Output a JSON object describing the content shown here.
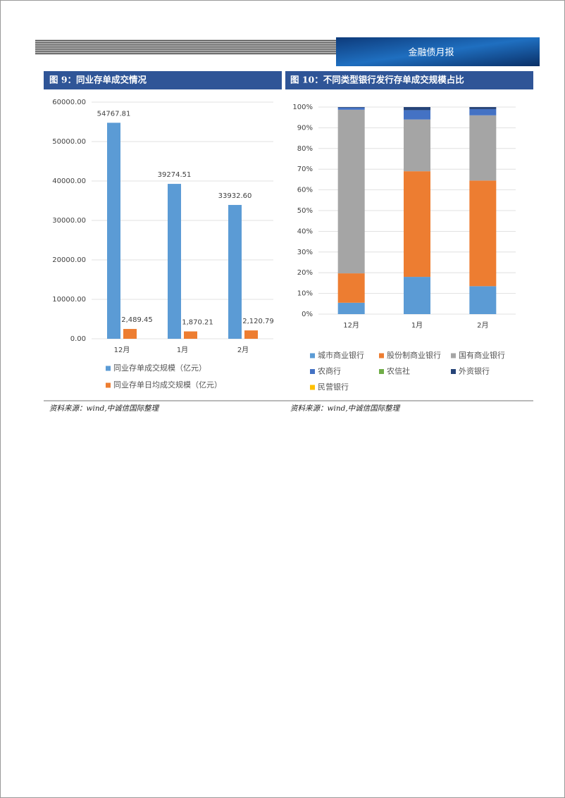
{
  "header": {
    "title": "金融债月报"
  },
  "chart_data": [
    {
      "type": "bar",
      "title": "图 9：同业存单成交情况",
      "categories": [
        "12月",
        "1月",
        "2月"
      ],
      "series": [
        {
          "name": "同业存单成交规模（亿元）",
          "color": "#5b9bd5",
          "values": [
            54767.81,
            39274.51,
            33932.6
          ],
          "value_labels": [
            "54767.81",
            "39274.51",
            "33932.60"
          ]
        },
        {
          "name": "同业存单日均成交规模（亿元）",
          "color": "#ed7d31",
          "values": [
            2489.45,
            1870.21,
            2120.79
          ],
          "value_labels": [
            "2,489.45",
            "1,870.21",
            "2,120.79"
          ]
        }
      ],
      "ylim": [
        0,
        60000
      ],
      "yticks": [
        {
          "value": 0,
          "label": "0.00"
        },
        {
          "value": 10000,
          "label": "10000.00"
        },
        {
          "value": 20000,
          "label": "20000.00"
        },
        {
          "value": 30000,
          "label": "30000.00"
        },
        {
          "value": 40000,
          "label": "40000.00"
        },
        {
          "value": 50000,
          "label": "50000.00"
        },
        {
          "value": 60000,
          "label": "60000.00"
        }
      ],
      "grid": true,
      "legend": "bottom"
    },
    {
      "type": "stacked_bar",
      "title": "图 10：不同类型银行发行存单成交规模占比",
      "categories": [
        "12月",
        "1月",
        "2月"
      ],
      "series": [
        {
          "name": "城市商业银行",
          "color": "#5b9bd5",
          "values": [
            5.5,
            18,
            13.5
          ]
        },
        {
          "name": "股份制商业银行",
          "color": "#ed7d31",
          "values": [
            14.2,
            51,
            51
          ]
        },
        {
          "name": "国有商业银行",
          "color": "#a5a5a5",
          "values": [
            79,
            25,
            31.5
          ]
        },
        {
          "name": "农商行",
          "color": "#4472c4",
          "values": [
            1,
            4.5,
            3
          ]
        },
        {
          "name": "农信社",
          "color": "#70ad47",
          "values": [
            0,
            0,
            0
          ]
        },
        {
          "name": "外资银行",
          "color": "#264478",
          "values": [
            0.3,
            1.5,
            1
          ]
        },
        {
          "name": "民营银行",
          "color": "#ffc000",
          "values": [
            0,
            0,
            0
          ]
        }
      ],
      "ylim": [
        0,
        100
      ],
      "yticks": [
        {
          "value": 0,
          "label": "0%"
        },
        {
          "value": 10,
          "label": "10%"
        },
        {
          "value": 20,
          "label": "20%"
        },
        {
          "value": 30,
          "label": "30%"
        },
        {
          "value": 40,
          "label": "40%"
        },
        {
          "value": 50,
          "label": "50%"
        },
        {
          "value": 60,
          "label": "60%"
        },
        {
          "value": 70,
          "label": "70%"
        },
        {
          "value": 80,
          "label": "80%"
        },
        {
          "value": 90,
          "label": "90%"
        },
        {
          "value": 100,
          "label": "100%"
        }
      ],
      "grid": true,
      "legend": "bottom"
    }
  ],
  "sources": [
    "资料来源：wind,中诚信国际整理",
    "资料来源：wind,中诚信国际整理"
  ]
}
